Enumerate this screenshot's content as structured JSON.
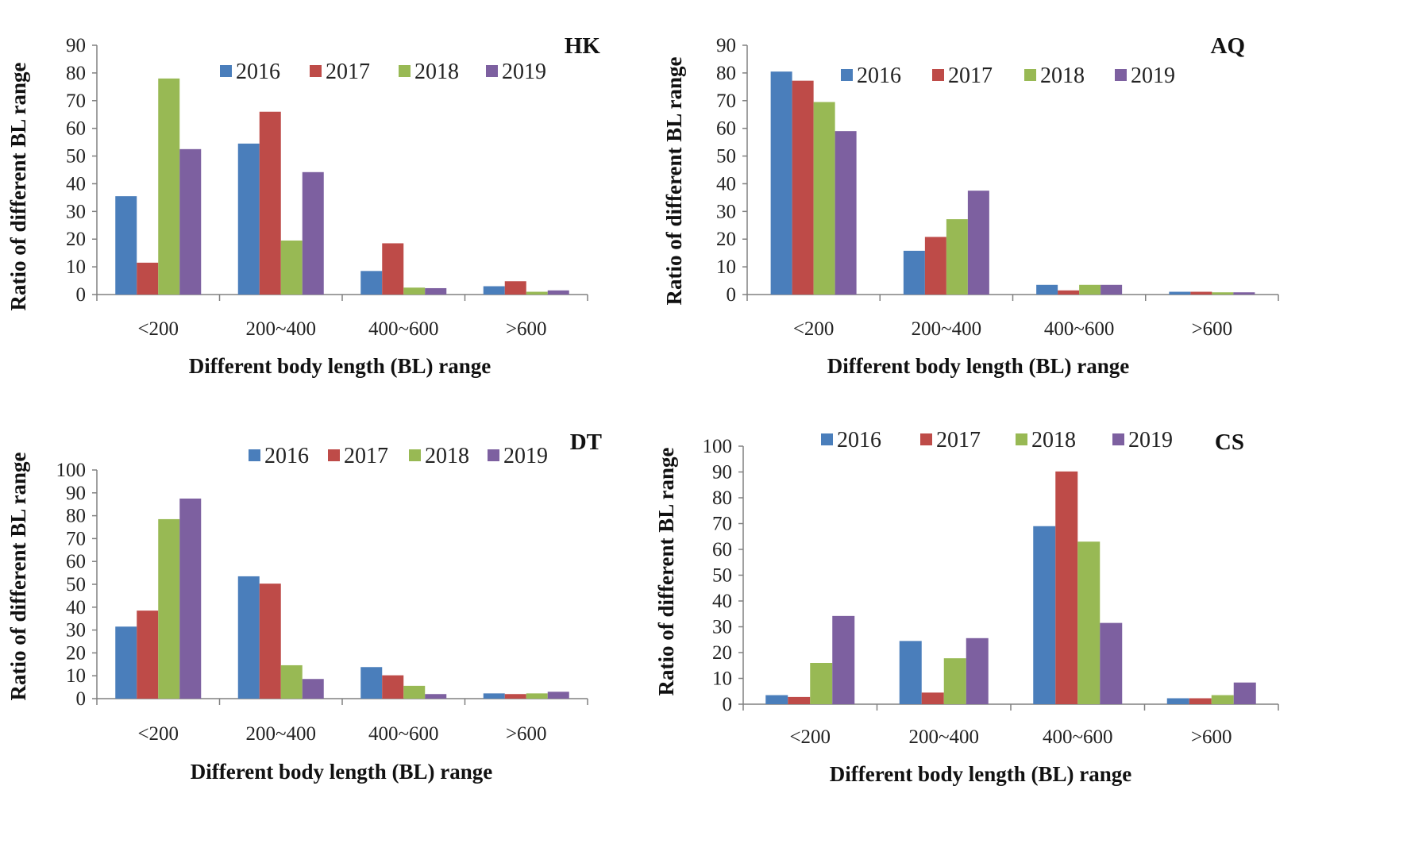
{
  "colors": {
    "2016": "#4a7ebb",
    "2017": "#be4b48",
    "2018": "#98b954",
    "2019": "#7d60a0"
  },
  "chart_data": [
    {
      "id": "hk",
      "type": "bar",
      "title": "HK",
      "xlabel": "Different body length (BL) range",
      "ylabel": "Ratio of different BL range",
      "categories": [
        "<200",
        "200~400",
        "400~600",
        ">600"
      ],
      "ylim": [
        0,
        90
      ],
      "yticks": [
        0,
        10,
        20,
        30,
        40,
        50,
        60,
        70,
        80,
        90
      ],
      "legend_position": "top",
      "series": [
        {
          "name": "2016",
          "values": [
            35.5,
            54.5,
            8.5,
            3
          ]
        },
        {
          "name": "2017",
          "values": [
            11.5,
            66,
            18.5,
            4.8
          ]
        },
        {
          "name": "2018",
          "values": [
            78,
            19.5,
            2.5,
            1
          ]
        },
        {
          "name": "2019",
          "values": [
            52.5,
            44.2,
            2.3,
            1.5
          ]
        }
      ]
    },
    {
      "id": "aq",
      "type": "bar",
      "title": "AQ",
      "xlabel": "Different body length (BL) range",
      "ylabel": "Ratio of different BL range",
      "categories": [
        "<200",
        "200~400",
        "400~600",
        ">600"
      ],
      "ylim": [
        0,
        90
      ],
      "yticks": [
        0,
        10,
        20,
        30,
        40,
        50,
        60,
        70,
        80,
        90
      ],
      "legend_position": "top",
      "series": [
        {
          "name": "2016",
          "values": [
            80.5,
            15.8,
            3.5,
            1
          ]
        },
        {
          "name": "2017",
          "values": [
            77.2,
            20.8,
            1.5,
            1
          ]
        },
        {
          "name": "2018",
          "values": [
            69.5,
            27.2,
            3.5,
            0.8
          ]
        },
        {
          "name": "2019",
          "values": [
            59,
            37.5,
            3.5,
            0.8
          ]
        }
      ]
    },
    {
      "id": "dt",
      "type": "bar",
      "title": "DT",
      "xlabel": "Different body length (BL) range",
      "ylabel": "Ratio of different BL range",
      "categories": [
        "<200",
        "200~400",
        "400~600",
        ">600"
      ],
      "ylim": [
        0,
        100
      ],
      "yticks": [
        0,
        10,
        20,
        30,
        40,
        50,
        60,
        70,
        80,
        90,
        100
      ],
      "legend_position": "top",
      "series": [
        {
          "name": "2016",
          "values": [
            31.5,
            53.5,
            13.8,
            2.3
          ]
        },
        {
          "name": "2017",
          "values": [
            38.5,
            50.3,
            10.2,
            2
          ]
        },
        {
          "name": "2018",
          "values": [
            78.5,
            14.6,
            5.6,
            2.3
          ]
        },
        {
          "name": "2019",
          "values": [
            87.5,
            8.6,
            2,
            3
          ]
        }
      ]
    },
    {
      "id": "cs",
      "type": "bar",
      "title": "CS",
      "xlabel": "Different body length (BL) range",
      "ylabel": "Ratio of different BL range",
      "categories": [
        "<200",
        "200~400",
        "400~600",
        ">600"
      ],
      "ylim": [
        0,
        100
      ],
      "yticks": [
        0,
        10,
        20,
        30,
        40,
        50,
        60,
        70,
        80,
        90,
        100
      ],
      "legend_position": "top",
      "series": [
        {
          "name": "2016",
          "values": [
            3.5,
            24.5,
            69,
            2.3
          ]
        },
        {
          "name": "2017",
          "values": [
            2.8,
            4.5,
            90.2,
            2.3
          ]
        },
        {
          "name": "2018",
          "values": [
            16,
            17.8,
            63,
            3.5
          ]
        },
        {
          "name": "2019",
          "values": [
            34.2,
            25.6,
            31.5,
            8.4
          ]
        }
      ]
    }
  ]
}
